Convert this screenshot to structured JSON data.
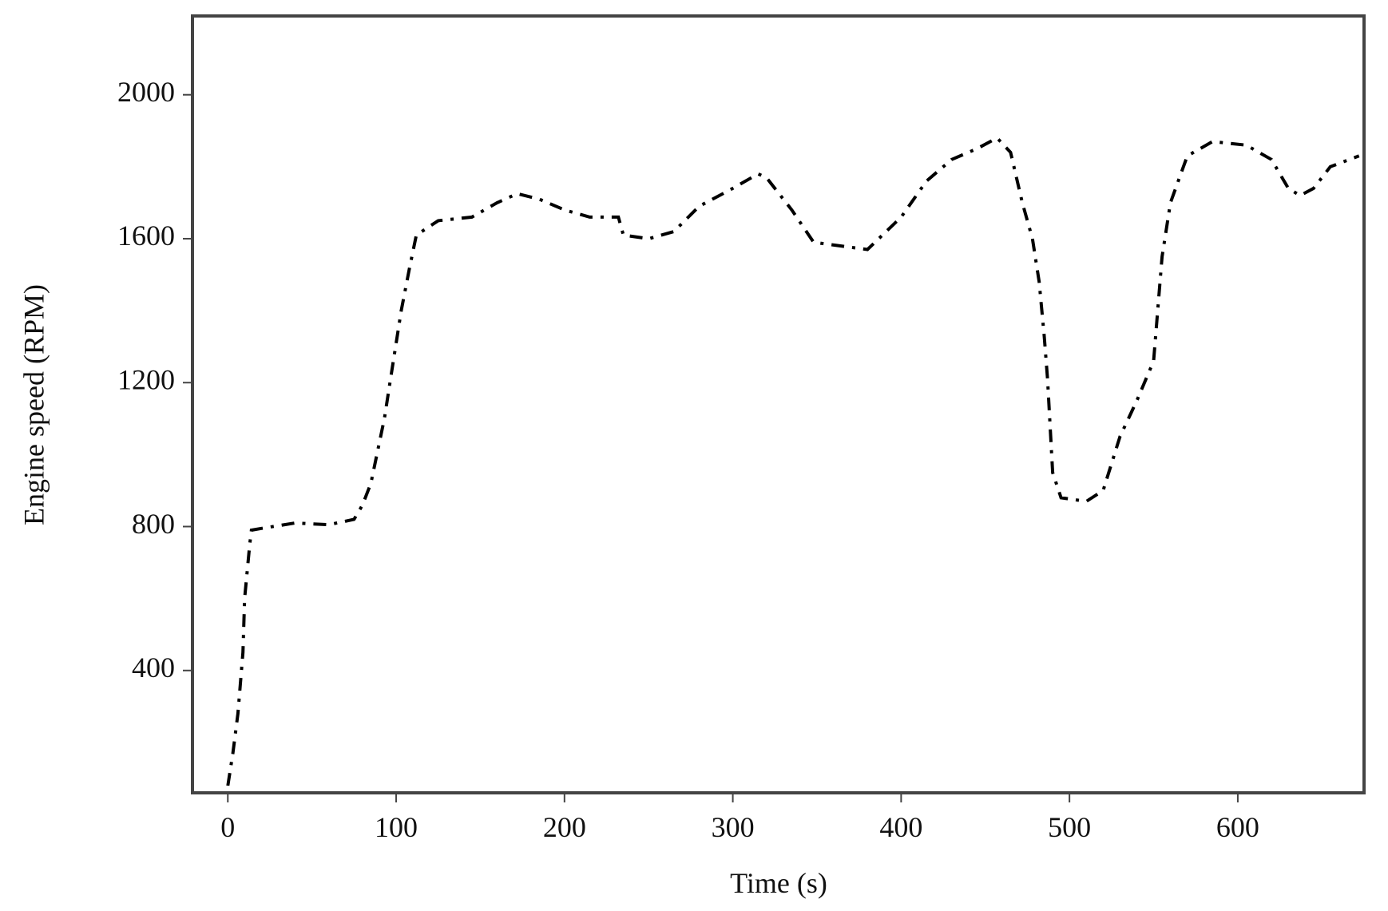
{
  "chart_data": {
    "type": "line",
    "xlabel": "Time (s)",
    "ylabel": "Engine speed  (RPM)",
    "x": [
      0,
      3,
      6,
      9,
      10,
      13,
      14,
      20,
      40,
      60,
      75,
      80,
      85,
      93,
      97,
      103,
      108,
      112,
      125,
      145,
      160,
      172,
      185,
      200,
      215,
      232,
      235,
      250,
      265,
      280,
      300,
      315,
      320,
      335,
      348,
      380,
      400,
      415,
      430,
      445,
      457,
      465,
      472,
      478,
      482,
      485,
      487,
      490,
      495,
      510,
      520,
      530,
      540,
      550,
      555,
      560,
      570,
      585,
      605,
      620,
      630,
      637,
      645,
      655,
      672
    ],
    "series": [
      {
        "color": "#000000",
        "values": [
          80,
          170,
          280,
          450,
          600,
          750,
          790,
          795,
          810,
          805,
          820,
          860,
          920,
          1100,
          1220,
          1400,
          1520,
          1610,
          1650,
          1660,
          1700,
          1725,
          1710,
          1680,
          1660,
          1660,
          1610,
          1600,
          1620,
          1690,
          1740,
          1780,
          1770,
          1680,
          1590,
          1570,
          1660,
          1760,
          1820,
          1850,
          1880,
          1840,
          1700,
          1600,
          1480,
          1330,
          1210,
          950,
          880,
          870,
          900,
          1050,
          1150,
          1260,
          1550,
          1700,
          1830,
          1870,
          1860,
          1820,
          1740,
          1720,
          1740,
          1800,
          1830
        ]
      }
    ],
    "xlim": [
      -21,
      675
    ],
    "ylim": [
      60,
      2219
    ],
    "xticks": [
      0,
      100,
      200,
      300,
      400,
      500,
      600
    ],
    "yticks": [
      400,
      800,
      1200,
      1600,
      2000
    ]
  }
}
